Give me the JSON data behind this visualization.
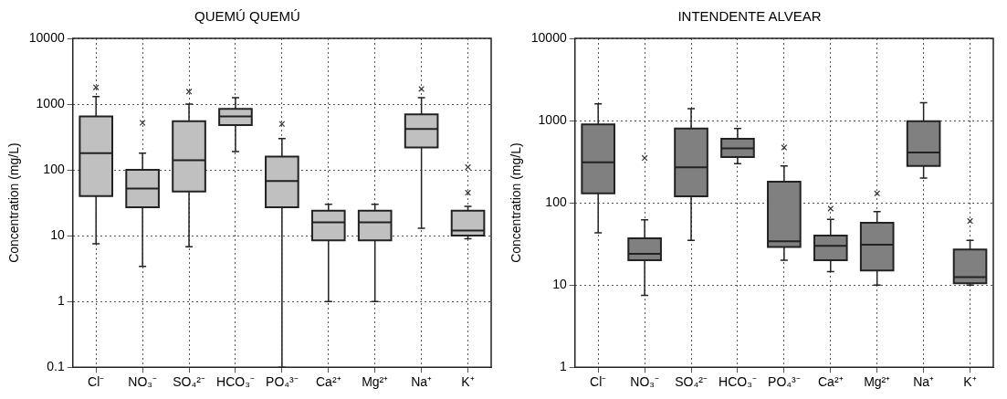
{
  "chart_data": [
    {
      "type": "box",
      "title": "QUEMÚ QUEMÚ",
      "ylabel": "Concentration (mg/L)",
      "categories": [
        "Cl⁻",
        "NO₃⁻",
        "SO₄²⁻",
        "HCO₃⁻",
        "PO₄³⁻",
        "Ca²⁺",
        "Mg²⁺",
        "Na⁺",
        "K⁺"
      ],
      "color": "#c0c0c0",
      "log": true,
      "grid": true,
      "ylim": [
        0.1,
        10000
      ],
      "yticks": [
        0.1,
        1,
        10,
        100,
        1000,
        10000
      ],
      "boxes": [
        {
          "low": 7.5,
          "q1": 40,
          "median": 180,
          "q3": 650,
          "high": 1300,
          "outliers": [
            1800
          ]
        },
        {
          "low": 3.4,
          "q1": 27,
          "median": 52,
          "q3": 100,
          "high": 180,
          "outliers": [
            520
          ]
        },
        {
          "low": 6.8,
          "q1": 47,
          "median": 140,
          "q3": 550,
          "high": 1000,
          "outliers": [
            1550
          ]
        },
        {
          "low": 190,
          "q1": 480,
          "median": 650,
          "q3": 850,
          "high": 1250
        },
        {
          "low": 0.1,
          "q1": 27,
          "median": 68,
          "q3": 160,
          "high": 300,
          "outliers": [
            500
          ]
        },
        {
          "low": 1,
          "q1": 8.5,
          "median": 16,
          "q3": 24,
          "high": 30
        },
        {
          "low": 1,
          "q1": 8.5,
          "median": 16,
          "q3": 24,
          "high": 30
        },
        {
          "low": 13,
          "q1": 220,
          "median": 420,
          "q3": 700,
          "high": 1250,
          "outliers": [
            1700
          ]
        },
        {
          "low": 9,
          "q1": 10,
          "median": 12,
          "q3": 24,
          "high": 28,
          "outliers": [
            45,
            110
          ]
        }
      ]
    },
    {
      "type": "box",
      "title": "INTENDENTE ALVEAR",
      "ylabel": "Concentration (mg/L)",
      "categories": [
        "Cl⁻",
        "NO₃⁻",
        "SO₄²⁻",
        "HCO₃⁻",
        "PO₄³⁻",
        "Ca²⁺",
        "Mg²⁺",
        "Na⁺",
        "K⁺"
      ],
      "color": "#808080",
      "log": true,
      "grid": true,
      "ylim": [
        1,
        10000
      ],
      "yticks": [
        1,
        10,
        100,
        1000,
        10000
      ],
      "boxes": [
        {
          "low": 43,
          "q1": 130,
          "median": 310,
          "q3": 900,
          "high": 1600
        },
        {
          "low": 7.5,
          "q1": 20,
          "median": 24,
          "q3": 37,
          "high": 62,
          "outliers": [
            350
          ]
        },
        {
          "low": 35,
          "q1": 120,
          "median": 270,
          "q3": 800,
          "high": 1400
        },
        {
          "low": 300,
          "q1": 360,
          "median": 460,
          "q3": 600,
          "high": 800
        },
        {
          "low": 20,
          "q1": 29,
          "median": 34,
          "q3": 180,
          "high": 280,
          "outliers": [
            470
          ]
        },
        {
          "low": 14.5,
          "q1": 20,
          "median": 30,
          "q3": 40,
          "high": 63,
          "outliers": [
            85
          ]
        },
        {
          "low": 10,
          "q1": 15,
          "median": 31,
          "q3": 57,
          "high": 78,
          "outliers": [
            130
          ]
        },
        {
          "low": 200,
          "q1": 280,
          "median": 410,
          "q3": 980,
          "high": 1650
        },
        {
          "low": 10,
          "q1": 10.5,
          "median": 12.5,
          "q3": 27,
          "high": 35,
          "outliers": [
            60
          ]
        }
      ]
    }
  ]
}
